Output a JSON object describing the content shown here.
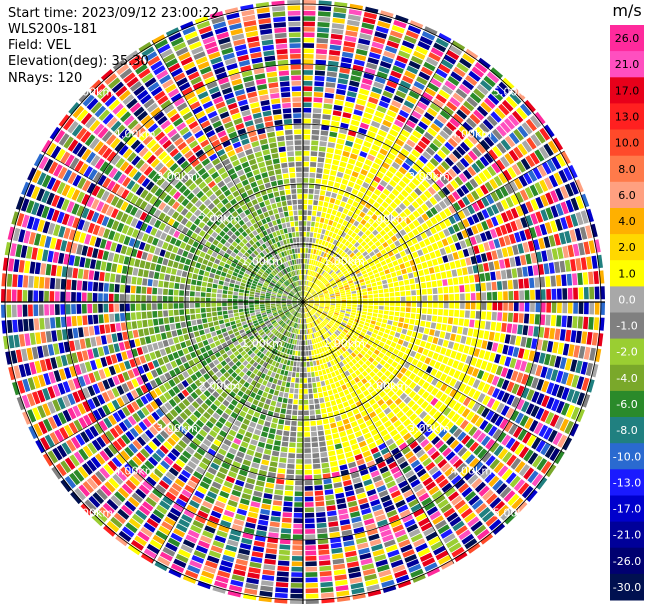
{
  "info": {
    "start_time": "Start time: 2023/09/12 23:00:22",
    "instrument": "WLS200s-181",
    "field": "Field: VEL",
    "elevation": "Elevation(deg): 35.30",
    "nrays": "NRays: 120"
  },
  "colorbar": {
    "unit": "m/s",
    "ticks": [
      "26.0",
      "21.0",
      "17.0",
      "13.0",
      "10.0",
      "8.0",
      "6.0",
      "4.0",
      "2.0",
      "1.0",
      "0.0",
      "-1.0",
      "-2.0",
      "-4.0",
      "-6.0",
      "-8.0",
      "-10.0",
      "-13.0",
      "-17.0",
      "-21.0",
      "-26.0",
      "-30.0"
    ],
    "colors": [
      "#ff2a9c",
      "#ff4fbf",
      "#e8001a",
      "#ff2020",
      "#ff4a2a",
      "#ff7a4a",
      "#ffa080",
      "#ffb000",
      "#ffd800",
      "#ffff00",
      "#a8a8a8",
      "#808080",
      "#9ace32",
      "#7aa82a",
      "#2a8a2a",
      "#208080",
      "#2a6ad0",
      "#1a1aff",
      "#0000cc",
      "#000099",
      "#000070",
      "#001050"
    ]
  },
  "chart_data": {
    "type": "heatmap",
    "projection": "polar (PPI)",
    "field": "VEL",
    "unit": "m/s",
    "n_rays": 120,
    "elevation_deg": 35.3,
    "range_ring_labels": [
      "1.00km",
      "2.00km",
      "3.00km",
      "4.00km",
      "5.00km"
    ],
    "color_scale_min": -30.0,
    "color_scale_max": 26.0,
    "description_pattern": {
      "inner_east": "positive 1-4 m/s (yellow/orange)",
      "inner_west": "negative -2 to -6 m/s (green)",
      "outer": "noise spanning full scale"
    }
  }
}
